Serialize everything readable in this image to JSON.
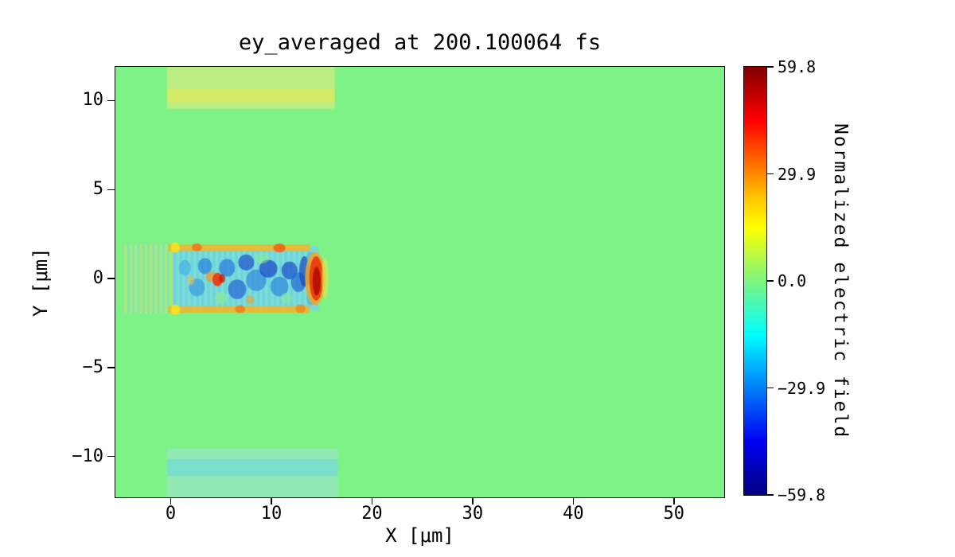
{
  "figure": {
    "title": "ey_averaged at 200.100064 fs",
    "xlabel": "X [μm]",
    "ylabel": "Y [μm]",
    "background": "#ffffff"
  },
  "axes": {
    "x_ticks": [
      {
        "value": 0,
        "label": "0"
      },
      {
        "value": 10,
        "label": "10"
      },
      {
        "value": 20,
        "label": "20"
      },
      {
        "value": 30,
        "label": "30"
      },
      {
        "value": 40,
        "label": "40"
      },
      {
        "value": 50,
        "label": "50"
      }
    ],
    "y_ticks": [
      {
        "value": 10,
        "label": "10"
      },
      {
        "value": 5,
        "label": "5"
      },
      {
        "value": 0,
        "label": "0"
      },
      {
        "value": -5,
        "label": "−5"
      },
      {
        "value": -10,
        "label": "−10"
      }
    ]
  },
  "colorbar": {
    "label": "Normalized electric field",
    "clim": [
      -59.8,
      59.8
    ],
    "ticks": [
      {
        "value": 59.8,
        "label": "59.8"
      },
      {
        "value": 29.9,
        "label": "29.9"
      },
      {
        "value": 0.0,
        "label": "0.0"
      },
      {
        "value": -29.9,
        "label": "−29.9"
      },
      {
        "value": -59.8,
        "label": "−59.8"
      }
    ],
    "gradient": [
      {
        "stop": 0.0,
        "color": "#000080"
      },
      {
        "stop": 0.125,
        "color": "#0000f2"
      },
      {
        "stop": 0.375,
        "color": "#00ffff"
      },
      {
        "stop": 0.5,
        "color": "#7df57e"
      },
      {
        "stop": 0.625,
        "color": "#ffff00"
      },
      {
        "stop": 0.7,
        "color": "#ffc000"
      },
      {
        "stop": 0.875,
        "color": "#ff0000"
      },
      {
        "stop": 1.0,
        "color": "#800000"
      }
    ]
  },
  "chart_data": {
    "type": "heatmap",
    "title": "ey_averaged at 200.100064 fs",
    "field": "ey_averaged",
    "time_fs": 200.100064,
    "xlabel": "X [μm]",
    "ylabel": "Y [μm]",
    "colorbar_label": "Normalized electric field",
    "colormap": "jet",
    "xlim": [
      -5.5,
      55
    ],
    "ylim": [
      -12.3,
      11.9
    ],
    "clim": [
      -59.8,
      59.8
    ],
    "background_value": 0.0,
    "background_color": "#7df287",
    "regions": [
      {
        "name": "background",
        "approx_value": 0,
        "description": "uniform near-zero averaged Ey everywhere outside the channel and boundary bands"
      },
      {
        "name": "upper-boundary-band",
        "x": [
          -0.3,
          16.3
        ],
        "y": [
          9.6,
          11.9
        ],
        "approx_value": 6,
        "description": "weak positive (yellow-green) horizontal band"
      },
      {
        "name": "lower-boundary-band",
        "x": [
          -0.3,
          16.6
        ],
        "y": [
          -12.3,
          -9.6
        ],
        "approx_value": -6,
        "description": "weak negative (cyan-green) horizontal band"
      },
      {
        "name": "laser-wake-channel",
        "x": [
          -4.6,
          15.8
        ],
        "y": [
          -2.2,
          2.2
        ],
        "approx_value": null,
        "description": "laser pulse / wakefield channel: alternating striations on the left, mottled negative (blue/cyan) interior, positive (orange) sheath edges at y ≈ ±1.8, strong positive red spot near x ≈ 4.7 and intense red pulse front near x ≈ 14.5"
      }
    ],
    "features": [
      {
        "type": "rect",
        "x": [
          -0.35,
          16.3
        ],
        "y": [
          9.55,
          11.9
        ],
        "color": "#c0ec82",
        "alpha": 0.95,
        "approx_value": 5
      },
      {
        "type": "rect",
        "x": [
          -0.35,
          16.3
        ],
        "y": [
          9.9,
          10.65
        ],
        "color": "#dbe95f",
        "alpha": 0.8,
        "approx_value": 9
      },
      {
        "type": "rect",
        "x": [
          -0.35,
          16.6
        ],
        "y": [
          -12.3,
          -9.55
        ],
        "color": "#92e9b6",
        "alpha": 0.95,
        "approx_value": -5
      },
      {
        "type": "rect",
        "x": [
          -0.35,
          16.6
        ],
        "y": [
          -11.1,
          -10.15
        ],
        "color": "#76ddcf",
        "alpha": 0.85,
        "approx_value": -10
      },
      {
        "type": "stripes",
        "x": [
          -4.6,
          0.4
        ],
        "y": [
          -1.95,
          1.95
        ],
        "period": 0.5,
        "colors": [
          "#e4df6c",
          "#7adfd2"
        ],
        "alpha": 0.5,
        "approx_value": 12
      },
      {
        "type": "rect",
        "x": [
          0.2,
          14.7
        ],
        "y": [
          -1.8,
          1.8
        ],
        "color": "#79d8e2",
        "alpha": 0.92,
        "approx_value": -18
      },
      {
        "type": "stripes",
        "x": [
          0.3,
          13.5
        ],
        "y": [
          -1.7,
          1.7
        ],
        "period": 0.55,
        "colors": [
          "#5ac8e8",
          "#88e8c8"
        ],
        "alpha": 0.35,
        "approx_value": -15
      },
      {
        "type": "ellipse",
        "c": [
          1.4,
          0.6
        ],
        "r": [
          0.6,
          0.45
        ],
        "color": "#49b4e6",
        "alpha": 0.75,
        "approx_value": -22
      },
      {
        "type": "ellipse",
        "c": [
          2.6,
          -0.5
        ],
        "r": [
          0.8,
          0.5
        ],
        "color": "#3f9fe0",
        "alpha": 0.75,
        "approx_value": -25
      },
      {
        "type": "ellipse",
        "c": [
          3.4,
          0.7
        ],
        "r": [
          0.7,
          0.45
        ],
        "color": "#2f86dc",
        "alpha": 0.75,
        "approx_value": -28
      },
      {
        "type": "ellipse",
        "c": [
          5.6,
          0.6
        ],
        "r": [
          0.8,
          0.5
        ],
        "color": "#2f7fdd",
        "alpha": 0.75,
        "approx_value": -28
      },
      {
        "type": "ellipse",
        "c": [
          6.6,
          -0.6
        ],
        "r": [
          0.9,
          0.55
        ],
        "color": "#2766d6",
        "alpha": 0.72,
        "approx_value": -32
      },
      {
        "type": "ellipse",
        "c": [
          7.5,
          0.9
        ],
        "r": [
          0.8,
          0.45
        ],
        "color": "#1f55cc",
        "alpha": 0.72,
        "approx_value": -35
      },
      {
        "type": "ellipse",
        "c": [
          8.5,
          -0.1
        ],
        "r": [
          1.0,
          0.6
        ],
        "color": "#2f86dc",
        "alpha": 0.68,
        "approx_value": -28
      },
      {
        "type": "ellipse",
        "c": [
          9.7,
          0.55
        ],
        "r": [
          0.9,
          0.5
        ],
        "color": "#1b4cc8",
        "alpha": 0.75,
        "approx_value": -38
      },
      {
        "type": "ellipse",
        "c": [
          10.8,
          -0.45
        ],
        "r": [
          0.9,
          0.55
        ],
        "color": "#2f86dc",
        "alpha": 0.7,
        "approx_value": -28
      },
      {
        "type": "ellipse",
        "c": [
          11.8,
          0.45
        ],
        "r": [
          0.8,
          0.5
        ],
        "color": "#1f55cc",
        "alpha": 0.75,
        "approx_value": -35
      },
      {
        "type": "ellipse",
        "c": [
          12.7,
          -0.2
        ],
        "r": [
          0.75,
          0.55
        ],
        "color": "#2766d6",
        "alpha": 0.72,
        "approx_value": -32
      },
      {
        "type": "ellipse",
        "c": [
          13.3,
          0.4
        ],
        "r": [
          0.55,
          0.85
        ],
        "color": "#1b46c0",
        "alpha": 0.7,
        "approx_value": -40
      },
      {
        "type": "ellipse",
        "c": [
          5.0,
          -1.1
        ],
        "r": [
          0.6,
          0.35
        ],
        "color": "#8ef08c",
        "alpha": 0.6,
        "approx_value": 0
      },
      {
        "type": "ellipse",
        "c": [
          9.1,
          1.15
        ],
        "r": [
          0.7,
          0.3
        ],
        "color": "#8ef08c",
        "alpha": 0.5,
        "approx_value": 0
      },
      {
        "type": "ellipse",
        "c": [
          11.5,
          -1.1
        ],
        "r": [
          0.6,
          0.3
        ],
        "color": "#8ef08c",
        "alpha": 0.45,
        "approx_value": 0
      },
      {
        "type": "ellipse",
        "c": [
          2.0,
          -0.1
        ],
        "r": [
          0.35,
          0.25
        ],
        "color": "#f0c040",
        "alpha": 0.55,
        "approx_value": 15
      },
      {
        "type": "ellipse",
        "c": [
          4.0,
          0.1
        ],
        "r": [
          0.55,
          0.3
        ],
        "color": "#f09a2e",
        "alpha": 0.75,
        "approx_value": 28
      },
      {
        "type": "ellipse",
        "c": [
          4.65,
          -0.05
        ],
        "r": [
          0.5,
          0.38
        ],
        "color": "#ee3b12",
        "alpha": 0.95,
        "approx_value": 45
      },
      {
        "type": "ellipse",
        "c": [
          5.1,
          0.0
        ],
        "r": [
          0.3,
          0.25
        ],
        "color": "#c81e04",
        "alpha": 0.8,
        "approx_value": 52
      },
      {
        "type": "ellipse",
        "c": [
          7.9,
          -1.2
        ],
        "r": [
          0.4,
          0.25
        ],
        "color": "#f0a030",
        "alpha": 0.6,
        "approx_value": 25
      },
      {
        "type": "rect",
        "x": [
          -0.25,
          13.8
        ],
        "y": [
          1.55,
          1.92
        ],
        "color": "#f2b62b",
        "alpha": 0.9,
        "approx_value": 22
      },
      {
        "type": "rect",
        "x": [
          -0.25,
          13.8
        ],
        "y": [
          -1.92,
          -1.55
        ],
        "color": "#f2b62b",
        "alpha": 0.9,
        "approx_value": 22
      },
      {
        "type": "ellipse",
        "c": [
          0.45,
          1.75
        ],
        "r": [
          0.45,
          0.3
        ],
        "color": "#f3e11e",
        "alpha": 0.95,
        "approx_value": 18
      },
      {
        "type": "ellipse",
        "c": [
          0.45,
          -1.75
        ],
        "r": [
          0.45,
          0.3
        ],
        "color": "#f3e11e",
        "alpha": 0.95,
        "approx_value": 18
      },
      {
        "type": "ellipse",
        "c": [
          2.6,
          1.75
        ],
        "r": [
          0.5,
          0.22
        ],
        "color": "#f07018",
        "alpha": 0.8,
        "approx_value": 32
      },
      {
        "type": "ellipse",
        "c": [
          10.8,
          1.72
        ],
        "r": [
          0.6,
          0.25
        ],
        "color": "#ef5a14",
        "alpha": 0.8,
        "approx_value": 36
      },
      {
        "type": "ellipse",
        "c": [
          6.9,
          -1.72
        ],
        "r": [
          0.5,
          0.22
        ],
        "color": "#f07018",
        "alpha": 0.7,
        "approx_value": 32
      },
      {
        "type": "ellipse",
        "c": [
          12.9,
          -1.7
        ],
        "r": [
          0.5,
          0.25
        ],
        "color": "#f0830f",
        "alpha": 0.7,
        "approx_value": 30
      },
      {
        "type": "ellipse",
        "c": [
          13.9,
          1.1
        ],
        "r": [
          0.4,
          0.4
        ],
        "color": "#49b4e6",
        "alpha": 0.6,
        "approx_value": -22
      },
      {
        "type": "ellipse",
        "c": [
          13.9,
          -1.1
        ],
        "r": [
          0.4,
          0.4
        ],
        "color": "#49b4e6",
        "alpha": 0.6,
        "approx_value": -22
      },
      {
        "type": "ellipse",
        "c": [
          14.35,
          0.0
        ],
        "r": [
          1.0,
          1.5
        ],
        "color": "#f5a623",
        "alpha": 0.85,
        "approx_value": 35
      },
      {
        "type": "ellipse",
        "c": [
          14.45,
          0.0
        ],
        "r": [
          0.68,
          1.25
        ],
        "color": "#ea3c0c",
        "alpha": 0.95,
        "approx_value": 50
      },
      {
        "type": "ellipse",
        "c": [
          14.5,
          -0.15
        ],
        "r": [
          0.4,
          0.8
        ],
        "color": "#b01000",
        "alpha": 0.9,
        "approx_value": 58
      },
      {
        "type": "ellipse",
        "c": [
          15.35,
          0.0
        ],
        "r": [
          0.35,
          1.2
        ],
        "color": "#f2e24a",
        "alpha": 0.55,
        "approx_value": 15
      }
    ]
  }
}
